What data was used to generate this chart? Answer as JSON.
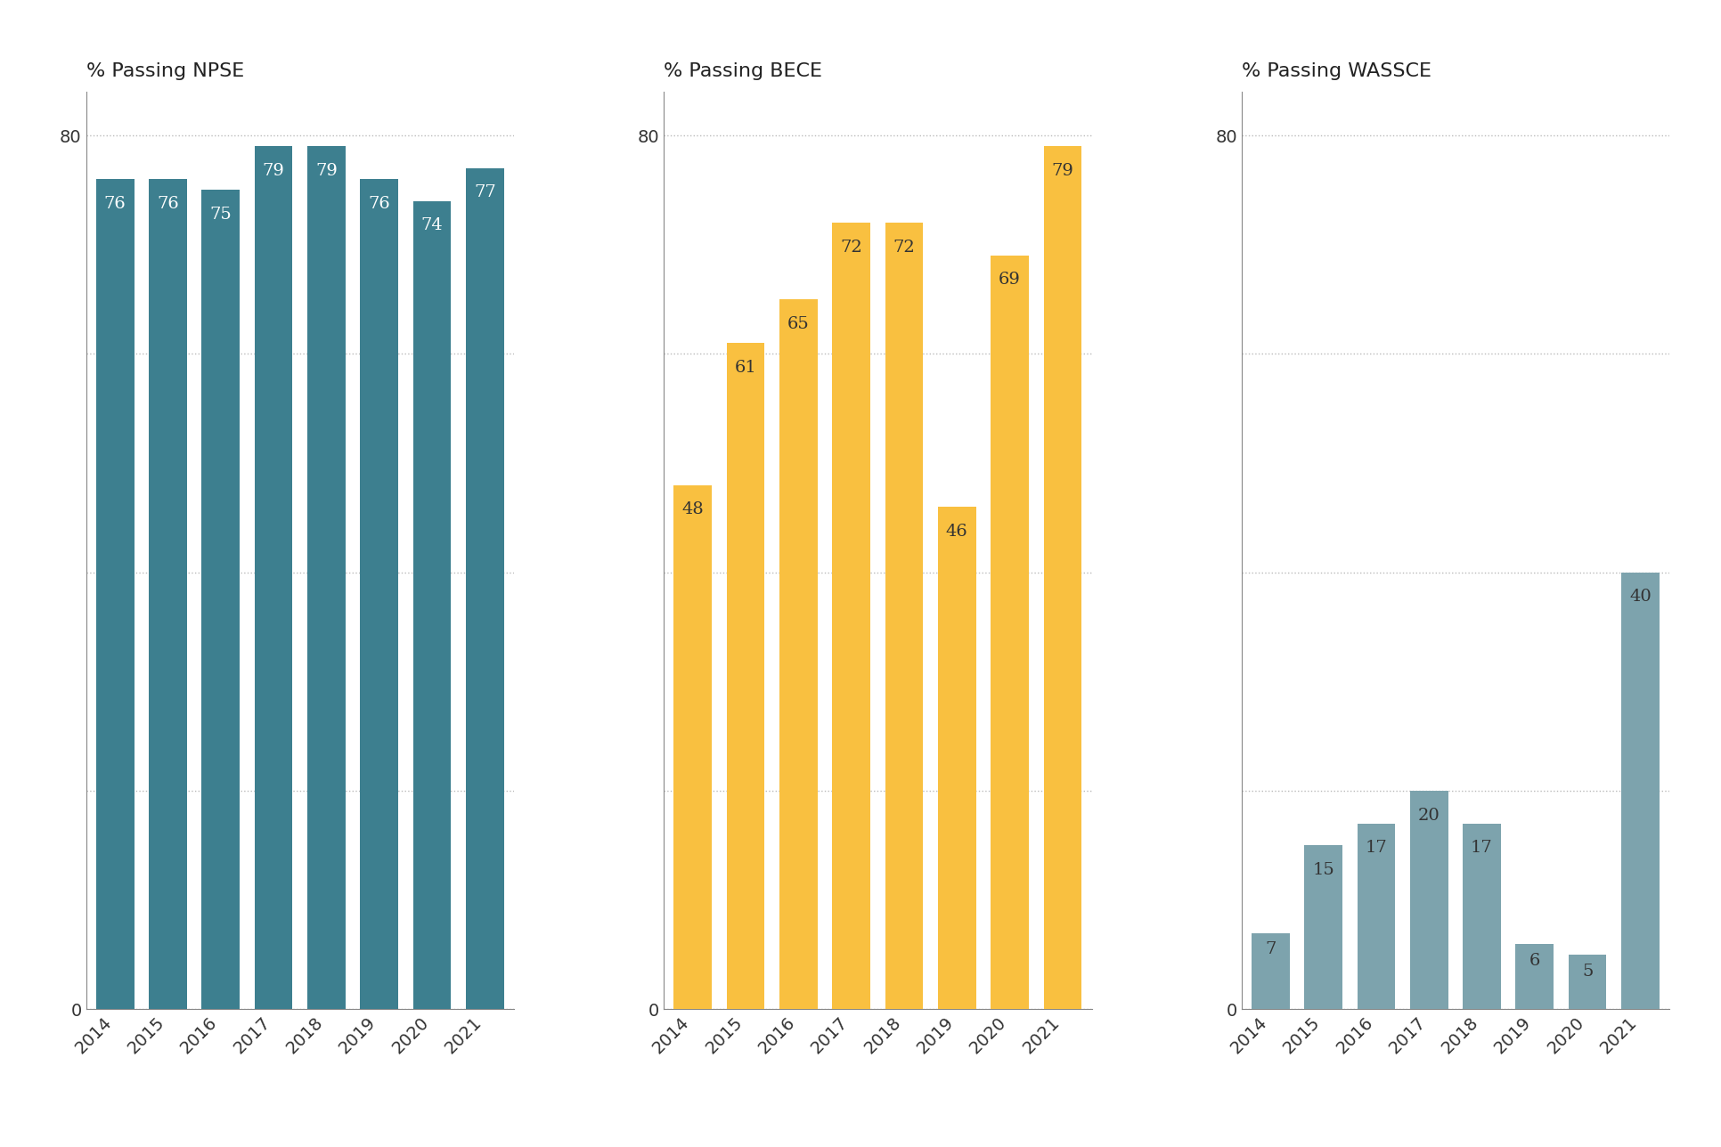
{
  "npse": {
    "years": [
      "2014",
      "2015",
      "2016",
      "2017",
      "2018",
      "2019",
      "2020",
      "2021"
    ],
    "values": [
      76,
      76,
      75,
      79,
      79,
      76,
      74,
      77
    ],
    "color": "#3d7f8f",
    "label_color": "white",
    "title": "% Passing NPSE"
  },
  "bece": {
    "years": [
      "2014",
      "2015",
      "2016",
      "2017",
      "2018",
      "2019",
      "2020",
      "2021"
    ],
    "values": [
      48,
      61,
      65,
      72,
      72,
      46,
      69,
      79
    ],
    "color": "#f9c040",
    "label_color": "#333333",
    "title": "% Passing BECE"
  },
  "wassce": {
    "years": [
      "2014",
      "2015",
      "2016",
      "2017",
      "2018",
      "2019",
      "2020",
      "2021"
    ],
    "values": [
      7,
      15,
      17,
      20,
      17,
      6,
      5,
      40
    ],
    "color": "#7da3ad",
    "label_color": "#333333",
    "title": "% Passing WASSCE"
  },
  "ylim": [
    0,
    84
  ],
  "yticks": [
    0,
    20,
    40,
    60,
    80
  ],
  "ytick_labels": [
    "0",
    "",
    "",
    "",
    "80"
  ],
  "background_color": "#ffffff",
  "grid_color": "#bbbbbb",
  "axis_color": "#888888",
  "label_fontsize": 14,
  "title_fontsize": 16,
  "bar_value_fontsize": 14,
  "tick_label_fontsize": 14
}
